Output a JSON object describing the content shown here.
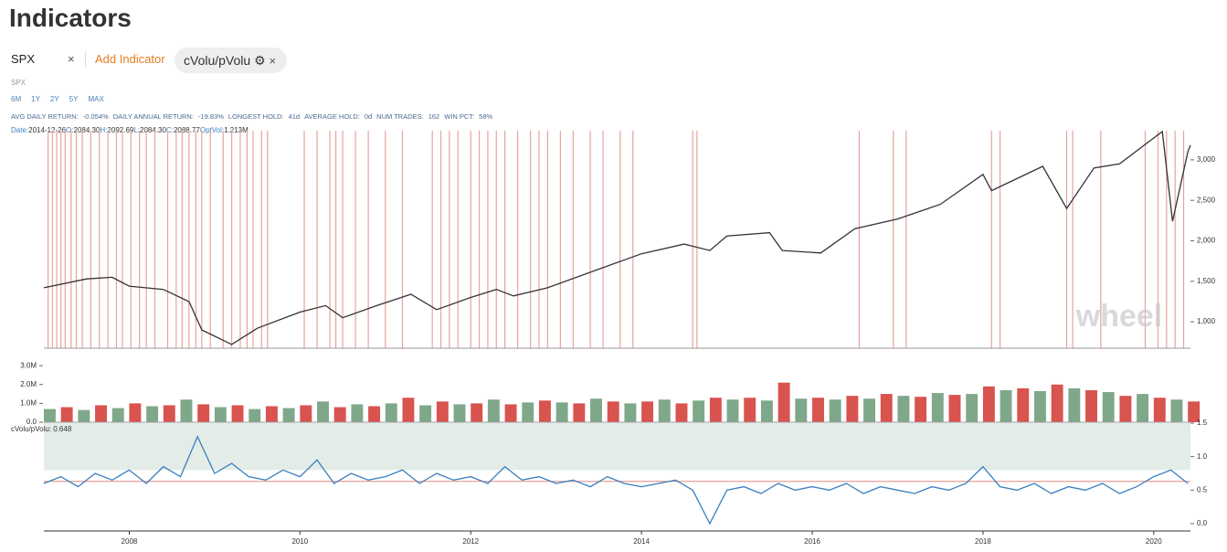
{
  "header": {
    "title": "Indicators"
  },
  "toolbar": {
    "symbol": "SPX",
    "add": "Add Indicator",
    "indicator": "cVolu/pVolu"
  },
  "symbol_label": "SPX",
  "ranges": [
    "6M",
    "1Y",
    "2Y",
    "5Y",
    "MAX"
  ],
  "stats": [
    {
      "label": "AVG DAILY RETURN:",
      "value": "-0.054%"
    },
    {
      "label": "DAILY ANNUAL RETURN:",
      "value": "-19.83%"
    },
    {
      "label": "LONGEST HOLD:",
      "value": "41d"
    },
    {
      "label": "AVERAGE HOLD:",
      "value": "0d"
    },
    {
      "label": "NUM TRADES:",
      "value": "162"
    },
    {
      "label": "WIN PCT:",
      "value": "58%"
    }
  ],
  "info": [
    {
      "label": "Date:",
      "value": "2014-12-26"
    },
    {
      "label": "O:",
      "value": "2084.30"
    },
    {
      "label": "H:",
      "value": "2092.69"
    },
    {
      "label": "L:",
      "value": "2084.30"
    },
    {
      "label": "C:",
      "value": "2088.77"
    },
    {
      "label": "OptVol:",
      "value": "1.213M"
    }
  ],
  "watermark": "wheel",
  "chart_data": [
    {
      "type": "line",
      "color": "#333333",
      "xlim": [
        2007,
        2020.43
      ],
      "ylim": [
        674,
        3360
      ],
      "yticks": [
        {
          "value": 1000,
          "label": "1,000"
        },
        {
          "value": 1500,
          "label": "1,500"
        },
        {
          "value": 2000,
          "label": "2,000"
        },
        {
          "value": 2500,
          "label": "2,500"
        },
        {
          "value": 3000,
          "label": "3,000"
        }
      ],
      "x": [
        2007.0,
        2007.5,
        2007.8,
        2008.0,
        2008.4,
        2008.7,
        2008.85,
        2009.2,
        2009.5,
        2010.0,
        2010.3,
        2010.5,
        2010.9,
        2011.3,
        2011.6,
        2012.0,
        2012.3,
        2012.5,
        2012.9,
        2013.5,
        2014.0,
        2014.5,
        2014.8,
        2015.0,
        2015.5,
        2015.65,
        2016.1,
        2016.5,
        2017.0,
        2017.5,
        2018.0,
        2018.1,
        2018.7,
        2018.98,
        2019.3,
        2019.6,
        2020.1,
        2020.22,
        2020.4,
        2020.43
      ],
      "y": [
        1420,
        1530,
        1550,
        1440,
        1400,
        1250,
        900,
        720,
        920,
        1120,
        1200,
        1050,
        1200,
        1340,
        1150,
        1300,
        1400,
        1320,
        1420,
        1650,
        1840,
        1960,
        1880,
        2060,
        2100,
        1880,
        1850,
        2150,
        2270,
        2450,
        2820,
        2620,
        2920,
        2400,
        2900,
        2950,
        3350,
        2240,
        3100,
        3180
      ],
      "signal_color": "#e8a39c",
      "signals": [
        2007.05,
        2007.1,
        2007.15,
        2007.2,
        2007.25,
        2007.32,
        2007.38,
        2007.45,
        2007.55,
        2007.65,
        2007.75,
        2007.85,
        2007.92,
        2008.02,
        2008.12,
        2008.2,
        2008.3,
        2008.45,
        2008.55,
        2008.62,
        2008.7,
        2008.78,
        2008.85,
        2008.95,
        2009.1,
        2009.2,
        2009.3,
        2009.38,
        2009.45,
        2009.55,
        2009.62,
        2010.05,
        2010.2,
        2010.35,
        2010.42,
        2010.5,
        2010.65,
        2010.8,
        2011.0,
        2011.2,
        2011.55,
        2011.65,
        2011.75,
        2011.85,
        2012.0,
        2012.1,
        2012.2,
        2012.3,
        2012.4,
        2012.55,
        2012.7,
        2012.8,
        2012.9,
        2013.05,
        2013.2,
        2013.4,
        2013.55,
        2013.75,
        2013.9,
        2014.6,
        2014.65,
        2016.55,
        2016.95,
        2017.1,
        2018.1,
        2018.2,
        2018.98,
        2019.05,
        2019.38,
        2019.9,
        2020.05,
        2020.15,
        2020.25,
        2020.35
      ]
    },
    {
      "type": "bar",
      "colors": [
        "#7fa88a",
        "#d9534f"
      ],
      "xlim": [
        2007,
        2020.43
      ],
      "ylim": [
        0,
        3250000
      ],
      "yticks": [
        {
          "value": 0,
          "label": "0.0"
        },
        {
          "value": 1000000,
          "label": "1.0M"
        },
        {
          "value": 2000000,
          "label": "2.0M"
        },
        {
          "value": 3000000,
          "label": "3.0M"
        }
      ],
      "x": [
        2007.0,
        2007.2,
        2007.4,
        2007.6,
        2007.8,
        2008.0,
        2008.2,
        2008.4,
        2008.6,
        2008.8,
        2009.0,
        2009.2,
        2009.4,
        2009.6,
        2009.8,
        2010.0,
        2010.2,
        2010.4,
        2010.6,
        2010.8,
        2011.0,
        2011.2,
        2011.4,
        2011.6,
        2011.8,
        2012.0,
        2012.2,
        2012.4,
        2012.6,
        2012.8,
        2013.0,
        2013.2,
        2013.4,
        2013.6,
        2013.8,
        2014.0,
        2014.2,
        2014.4,
        2014.6,
        2014.8,
        2015.0,
        2015.2,
        2015.4,
        2015.6,
        2015.8,
        2016.0,
        2016.2,
        2016.4,
        2016.6,
        2016.8,
        2017.0,
        2017.2,
        2017.4,
        2017.6,
        2017.8,
        2018.0,
        2018.2,
        2018.4,
        2018.6,
        2018.8,
        2019.0,
        2019.2,
        2019.4,
        2019.6,
        2019.8,
        2020.0,
        2020.2,
        2020.4
      ],
      "values": [
        700000,
        800000,
        650000,
        900000,
        750000,
        1000000,
        850000,
        900000,
        1200000,
        950000,
        800000,
        900000,
        700000,
        850000,
        750000,
        900000,
        1100000,
        800000,
        950000,
        850000,
        1000000,
        1300000,
        900000,
        1100000,
        950000,
        1000000,
        1200000,
        950000,
        1050000,
        1150000,
        1050000,
        1000000,
        1250000,
        1100000,
        1000000,
        1100000,
        1200000,
        1000000,
        1150000,
        1300000,
        1200000,
        1300000,
        1150000,
        2100000,
        1250000,
        1300000,
        1200000,
        1400000,
        1250000,
        1500000,
        1400000,
        1350000,
        1550000,
        1450000,
        1500000,
        1900000,
        1700000,
        1800000,
        1650000,
        2000000,
        1800000,
        1700000,
        1600000,
        1400000,
        1500000,
        1300000,
        1200000,
        1100000
      ]
    },
    {
      "type": "line",
      "label": "cVolu/pVolu: 0.648",
      "color": "#3a7fbf",
      "xlim": [
        2007,
        2020.43
      ],
      "ylim": [
        -0.11,
        1.5
      ],
      "band": [
        0.8,
        1.5
      ],
      "band_color": "#e3ece6",
      "threshold": 0.63,
      "threshold_color": "#e08a80",
      "yticks": [
        {
          "value": 0,
          "label": "0.0"
        },
        0.5,
        {
          "value": 1,
          "label": "1.0"
        },
        1.5
      ],
      "xticks": [
        2008,
        2010,
        2012,
        2014,
        2016,
        2018,
        2020
      ],
      "x": [
        2007.0,
        2007.2,
        2007.4,
        2007.6,
        2007.8,
        2008.0,
        2008.2,
        2008.4,
        2008.6,
        2008.8,
        2009.0,
        2009.2,
        2009.4,
        2009.6,
        2009.8,
        2010.0,
        2010.2,
        2010.4,
        2010.6,
        2010.8,
        2011.0,
        2011.2,
        2011.4,
        2011.6,
        2011.8,
        2012.0,
        2012.2,
        2012.4,
        2012.6,
        2012.8,
        2013.0,
        2013.2,
        2013.4,
        2013.6,
        2013.8,
        2014.0,
        2014.2,
        2014.4,
        2014.6,
        2014.8,
        2015.0,
        2015.2,
        2015.4,
        2015.6,
        2015.8,
        2016.0,
        2016.2,
        2016.4,
        2016.6,
        2016.8,
        2017.0,
        2017.2,
        2017.4,
        2017.6,
        2017.8,
        2018.0,
        2018.2,
        2018.4,
        2018.6,
        2018.8,
        2019.0,
        2019.2,
        2019.4,
        2019.6,
        2019.8,
        2020.0,
        2020.2,
        2020.4
      ],
      "y": [
        0.6,
        0.7,
        0.55,
        0.75,
        0.65,
        0.8,
        0.6,
        0.85,
        0.7,
        1.3,
        0.75,
        0.9,
        0.7,
        0.65,
        0.8,
        0.7,
        0.95,
        0.6,
        0.75,
        0.65,
        0.7,
        0.8,
        0.6,
        0.75,
        0.65,
        0.7,
        0.6,
        0.85,
        0.65,
        0.7,
        0.6,
        0.65,
        0.55,
        0.7,
        0.6,
        0.55,
        0.6,
        0.65,
        0.5,
        0.0,
        0.5,
        0.55,
        0.45,
        0.6,
        0.5,
        0.55,
        0.5,
        0.6,
        0.45,
        0.55,
        0.5,
        0.45,
        0.55,
        0.5,
        0.6,
        0.85,
        0.55,
        0.5,
        0.6,
        0.45,
        0.55,
        0.5,
        0.6,
        0.45,
        0.55,
        0.7,
        0.8,
        0.6
      ]
    }
  ]
}
